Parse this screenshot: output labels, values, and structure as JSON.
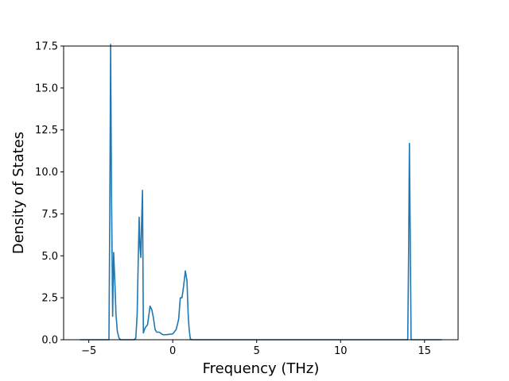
{
  "chart_data": {
    "type": "line",
    "title": "",
    "xlabel": "Frequency (THz)",
    "ylabel": "Density of States",
    "xlim": [
      -6.5,
      17.0
    ],
    "ylim": [
      0.0,
      17.5
    ],
    "xticks": [
      -5,
      0,
      5,
      10,
      15
    ],
    "xtick_labels": [
      "−5",
      "0",
      "5",
      "10",
      "15"
    ],
    "yticks": [
      0.0,
      2.5,
      5.0,
      7.5,
      10.0,
      12.5,
      15.0,
      17.5
    ],
    "ytick_labels": [
      "0.0",
      "2.5",
      "5.0",
      "7.5",
      "10.0",
      "12.5",
      "15.0",
      "17.5"
    ],
    "grid": false,
    "legend": "none",
    "series": [
      {
        "color": "#1f77b4",
        "x": [
          -5.5,
          -3.8,
          -3.75,
          -3.7,
          -3.65,
          -3.58,
          -3.52,
          -3.45,
          -3.38,
          -3.3,
          -3.2,
          -3.1,
          -3.0,
          -2.5,
          -2.3,
          -2.2,
          -2.12,
          -2.05,
          -2.0,
          -1.95,
          -1.9,
          -1.85,
          -1.8,
          -1.75,
          -1.7,
          -1.65,
          -1.5,
          -1.35,
          -1.25,
          -1.15,
          -1.05,
          -0.95,
          -0.8,
          -0.6,
          -0.4,
          -0.2,
          0.0,
          0.2,
          0.35,
          0.45,
          0.55,
          0.65,
          0.75,
          0.85,
          0.92,
          0.98,
          1.05,
          1.15,
          1.3,
          2.0,
          13.9,
          14.0,
          14.05,
          14.1,
          14.15,
          14.2,
          14.3,
          16.0
        ],
        "y": [
          0.0,
          0.0,
          7.5,
          17.6,
          9.0,
          1.4,
          5.2,
          3.5,
          1.5,
          0.5,
          0.1,
          0.0,
          0.0,
          0.0,
          0.0,
          0.1,
          1.5,
          5.0,
          7.3,
          5.5,
          4.9,
          7.2,
          8.9,
          0.4,
          0.55,
          0.7,
          0.9,
          2.0,
          1.8,
          1.3,
          0.6,
          0.45,
          0.45,
          0.3,
          0.3,
          0.32,
          0.35,
          0.6,
          1.2,
          2.5,
          2.5,
          3.2,
          4.1,
          3.5,
          1.5,
          0.6,
          0.05,
          0.0,
          0.0,
          0.0,
          0.0,
          0.0,
          5.0,
          11.7,
          6.0,
          0.0,
          0.0,
          0.0
        ]
      }
    ]
  }
}
